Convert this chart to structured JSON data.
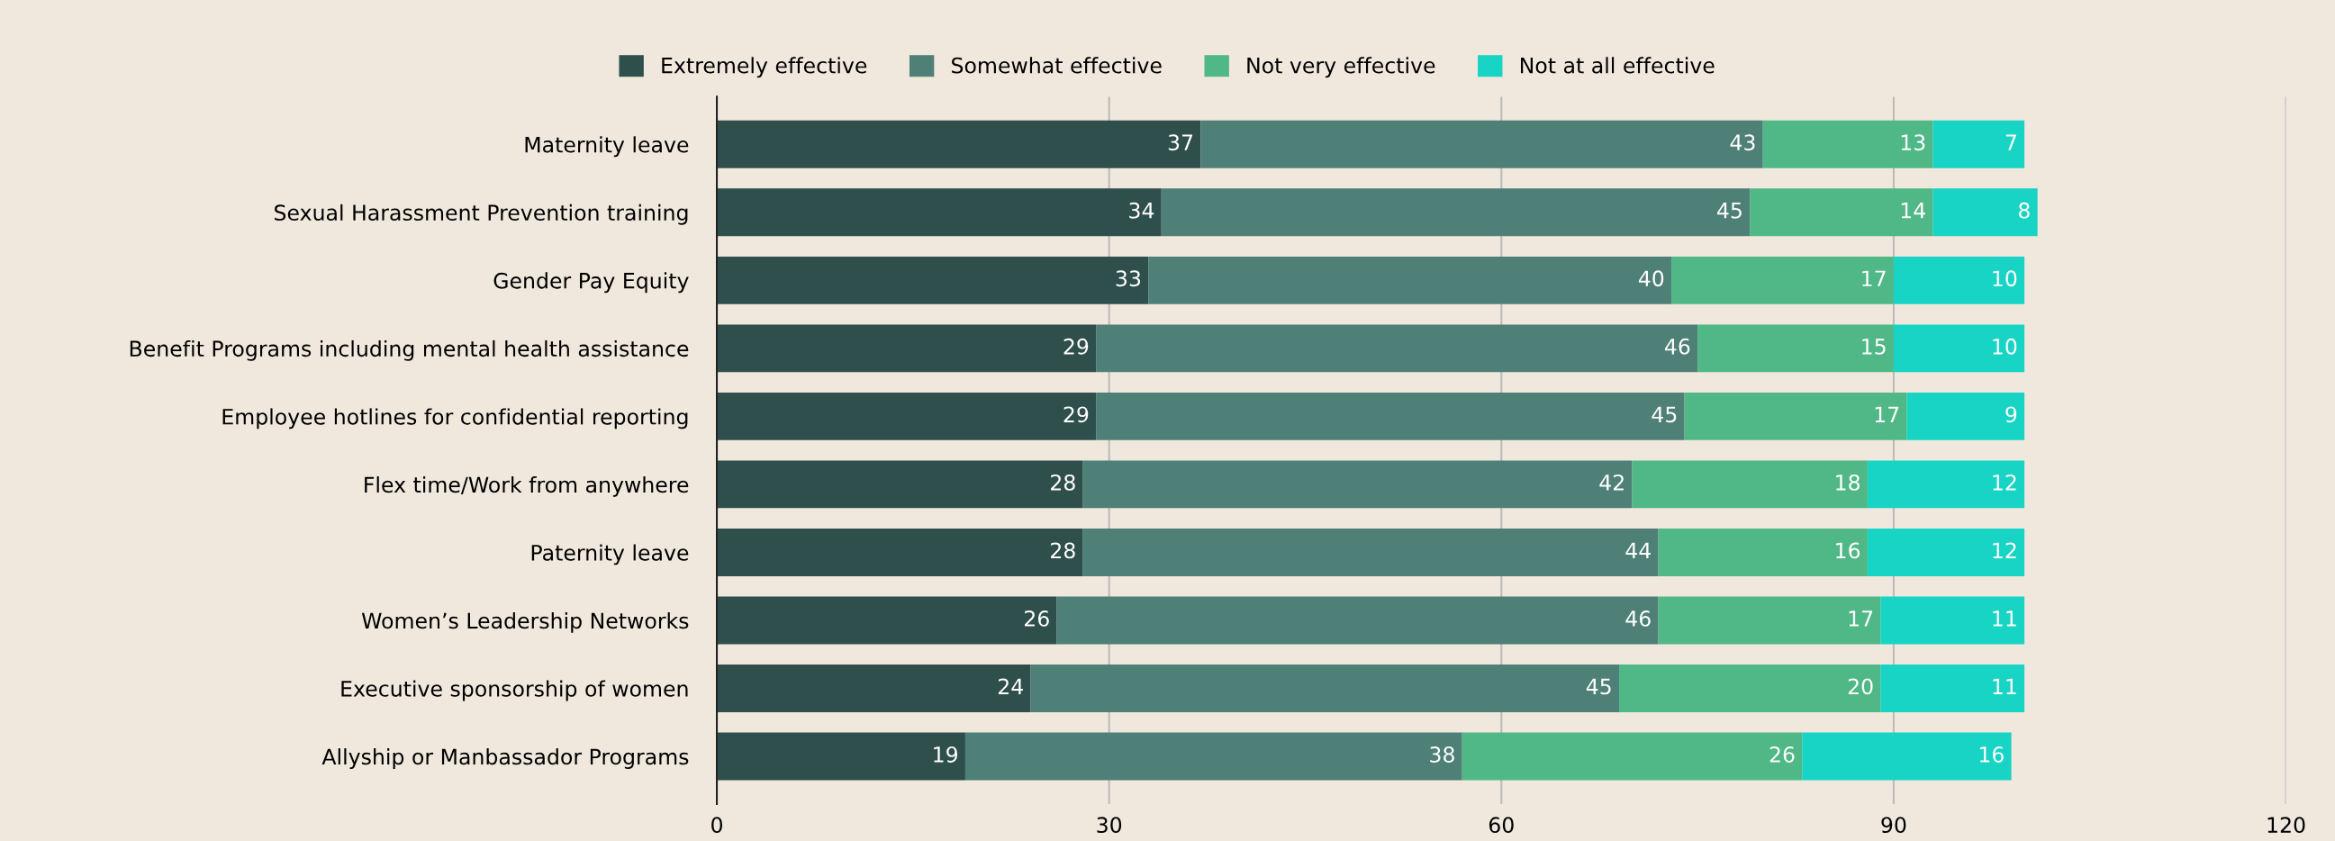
{
  "chart_data": {
    "type": "bar",
    "orientation": "horizontal",
    "stacked": true,
    "data_labels": true,
    "grid": "x",
    "legend": "top",
    "categories": [
      "Maternity leave",
      "Sexual Harassment Prevention training",
      "Gender Pay Equity",
      "Benefit Programs including mental health assistance",
      "Employee hotlines for confidential reporting",
      "Flex time/Work from anywhere",
      "Paternity leave",
      "Women’s Leadership Networks",
      "Executive sponsorship of women",
      "Allyship or Manbassador Programs"
    ],
    "series": [
      {
        "name": "Extremely effective",
        "color": "#2f4f4c",
        "values": [
          37,
          34,
          33,
          29,
          29,
          28,
          28,
          26,
          24,
          19
        ]
      },
      {
        "name": "Somewhat effective",
        "color": "#4e8077",
        "values": [
          43,
          45,
          40,
          46,
          45,
          42,
          44,
          46,
          45,
          38
        ]
      },
      {
        "name": "Not very effective",
        "color": "#50b886",
        "values": [
          13,
          14,
          17,
          15,
          17,
          18,
          16,
          17,
          20,
          26
        ]
      },
      {
        "name": "Not at all effective",
        "color": "#17d4c4",
        "values": [
          7,
          8,
          10,
          10,
          9,
          12,
          12,
          11,
          11,
          16
        ]
      }
    ],
    "xlim": [
      0,
      120
    ],
    "xticks": [
      0,
      30,
      60,
      90,
      120
    ]
  }
}
